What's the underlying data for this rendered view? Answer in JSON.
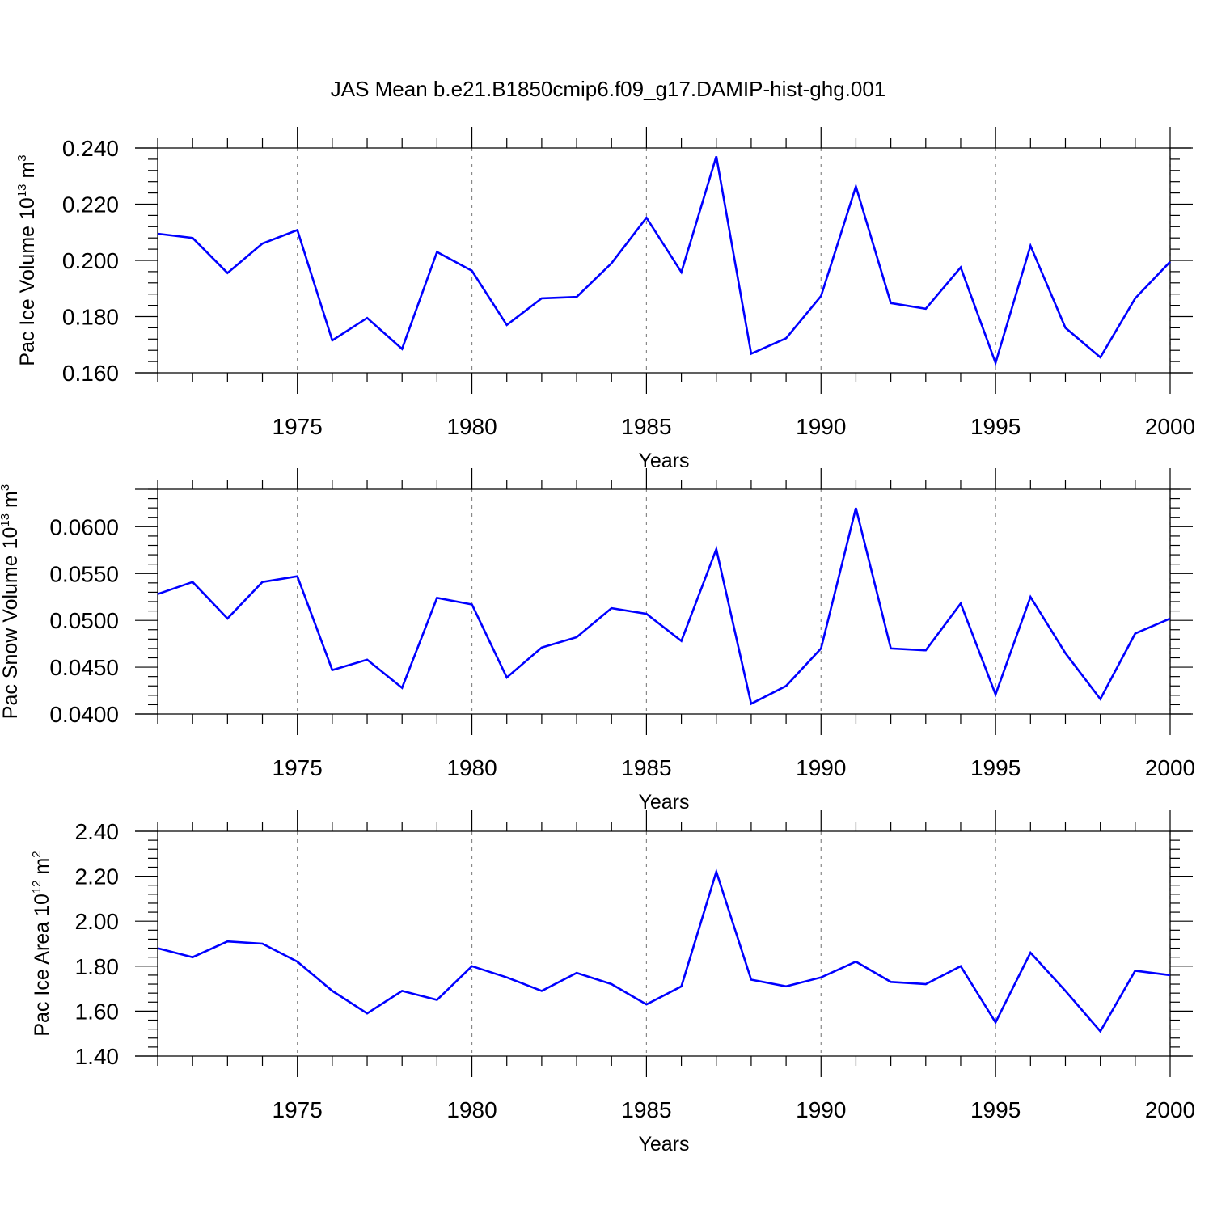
{
  "title": "JAS Mean b.e21.B1850cmip6.f09_g17.DAMIP-hist-ghg.001",
  "colors": {
    "line": "#0000ff",
    "axis": "#000000",
    "grid": "#888888"
  },
  "chart_data": [
    {
      "type": "line",
      "xlabel": "Years",
      "ylabel": {
        "text": "Pac Ice Volume 10",
        "exp": "13",
        "unit": " m",
        "unit_exp": "3"
      },
      "x": [
        1971,
        1972,
        1973,
        1974,
        1975,
        1976,
        1977,
        1978,
        1979,
        1980,
        1981,
        1982,
        1983,
        1984,
        1985,
        1986,
        1987,
        1988,
        1989,
        1990,
        1991,
        1992,
        1993,
        1994,
        1995,
        1996,
        1997,
        1998,
        1999,
        2000
      ],
      "series": [
        {
          "name": "Pac Ice Volume",
          "values": [
            0.2095,
            0.208,
            0.1955,
            0.206,
            0.2108,
            0.1715,
            0.1795,
            0.1685,
            0.203,
            0.1963,
            0.177,
            0.1865,
            0.187,
            0.199,
            0.2152,
            0.1958,
            0.237,
            0.1668,
            0.1723,
            0.1873,
            0.2263,
            0.1848,
            0.1828,
            0.1975,
            0.1635,
            0.2052,
            0.176,
            0.1655,
            0.1865,
            0.1995
          ]
        }
      ],
      "xlim": [
        1971,
        2000
      ],
      "ylim": [
        0.16,
        0.24
      ],
      "xticks": [
        1975,
        1980,
        1985,
        1990,
        1995,
        2000
      ],
      "xtick_labels": [
        "1975",
        "1980",
        "1985",
        "1990",
        "1995",
        "2000"
      ],
      "yticks": [
        0.16,
        0.18,
        0.2,
        0.22,
        0.24
      ],
      "ytick_labels": [
        "0.160",
        "0.180",
        "0.200",
        "0.220",
        "0.240"
      ],
      "yminor_step": 0.004,
      "grid": "dashed vertical at major x ticks"
    },
    {
      "type": "line",
      "xlabel": "Years",
      "ylabel": {
        "text": "Pac Snow Volume 10",
        "exp": "13",
        "unit": " m",
        "unit_exp": "3"
      },
      "x": [
        1971,
        1972,
        1973,
        1974,
        1975,
        1976,
        1977,
        1978,
        1979,
        1980,
        1981,
        1982,
        1983,
        1984,
        1985,
        1986,
        1987,
        1988,
        1989,
        1990,
        1991,
        1992,
        1993,
        1994,
        1995,
        1996,
        1997,
        1998,
        1999,
        2000
      ],
      "series": [
        {
          "name": "Pac Snow Volume",
          "values": [
            0.0528,
            0.0541,
            0.0502,
            0.0541,
            0.0547,
            0.0447,
            0.0458,
            0.0428,
            0.0524,
            0.0517,
            0.0439,
            0.0471,
            0.0482,
            0.0513,
            0.0507,
            0.0478,
            0.0576,
            0.0411,
            0.043,
            0.047,
            0.062,
            0.047,
            0.0468,
            0.0518,
            0.0421,
            0.0525,
            0.0465,
            0.0416,
            0.0486,
            0.0502
          ]
        }
      ],
      "xlim": [
        1971,
        2000
      ],
      "ylim": [
        0.04,
        0.064
      ],
      "xticks": [
        1975,
        1980,
        1985,
        1990,
        1995,
        2000
      ],
      "xtick_labels": [
        "1975",
        "1980",
        "1985",
        "1990",
        "1995",
        "2000"
      ],
      "yticks": [
        0.04,
        0.045,
        0.05,
        0.055,
        0.06
      ],
      "ytick_labels": [
        "0.0400",
        "0.0450",
        "0.0500",
        "0.0550",
        "0.0600"
      ],
      "yminor_step": 0.001,
      "grid": "dashed vertical at major x ticks"
    },
    {
      "type": "line",
      "xlabel": "Years",
      "ylabel": {
        "text": "Pac Ice Area 10",
        "exp": "12",
        "unit": " m",
        "unit_exp": "2"
      },
      "x": [
        1971,
        1972,
        1973,
        1974,
        1975,
        1976,
        1977,
        1978,
        1979,
        1980,
        1981,
        1982,
        1983,
        1984,
        1985,
        1986,
        1987,
        1988,
        1989,
        1990,
        1991,
        1992,
        1993,
        1994,
        1995,
        1996,
        1997,
        1998,
        1999,
        2000
      ],
      "series": [
        {
          "name": "Pac Ice Area",
          "values": [
            1.88,
            1.84,
            1.91,
            1.9,
            1.82,
            1.69,
            1.59,
            1.69,
            1.65,
            1.8,
            1.75,
            1.69,
            1.77,
            1.72,
            1.63,
            1.71,
            2.22,
            1.74,
            1.71,
            1.75,
            1.82,
            1.73,
            1.72,
            1.8,
            1.55,
            1.86,
            1.69,
            1.51,
            1.78,
            1.76
          ]
        }
      ],
      "xlim": [
        1971,
        2000
      ],
      "ylim": [
        1.4,
        2.4
      ],
      "xticks": [
        1975,
        1980,
        1985,
        1990,
        1995,
        2000
      ],
      "xtick_labels": [
        "1975",
        "1980",
        "1985",
        "1990",
        "1995",
        "2000"
      ],
      "yticks": [
        1.4,
        1.6,
        1.8,
        2.0,
        2.2,
        2.4
      ],
      "ytick_labels": [
        "1.40",
        "1.60",
        "1.80",
        "2.00",
        "2.20",
        "2.40"
      ],
      "yminor_step": 0.04,
      "grid": "dashed vertical at major x ticks"
    }
  ]
}
